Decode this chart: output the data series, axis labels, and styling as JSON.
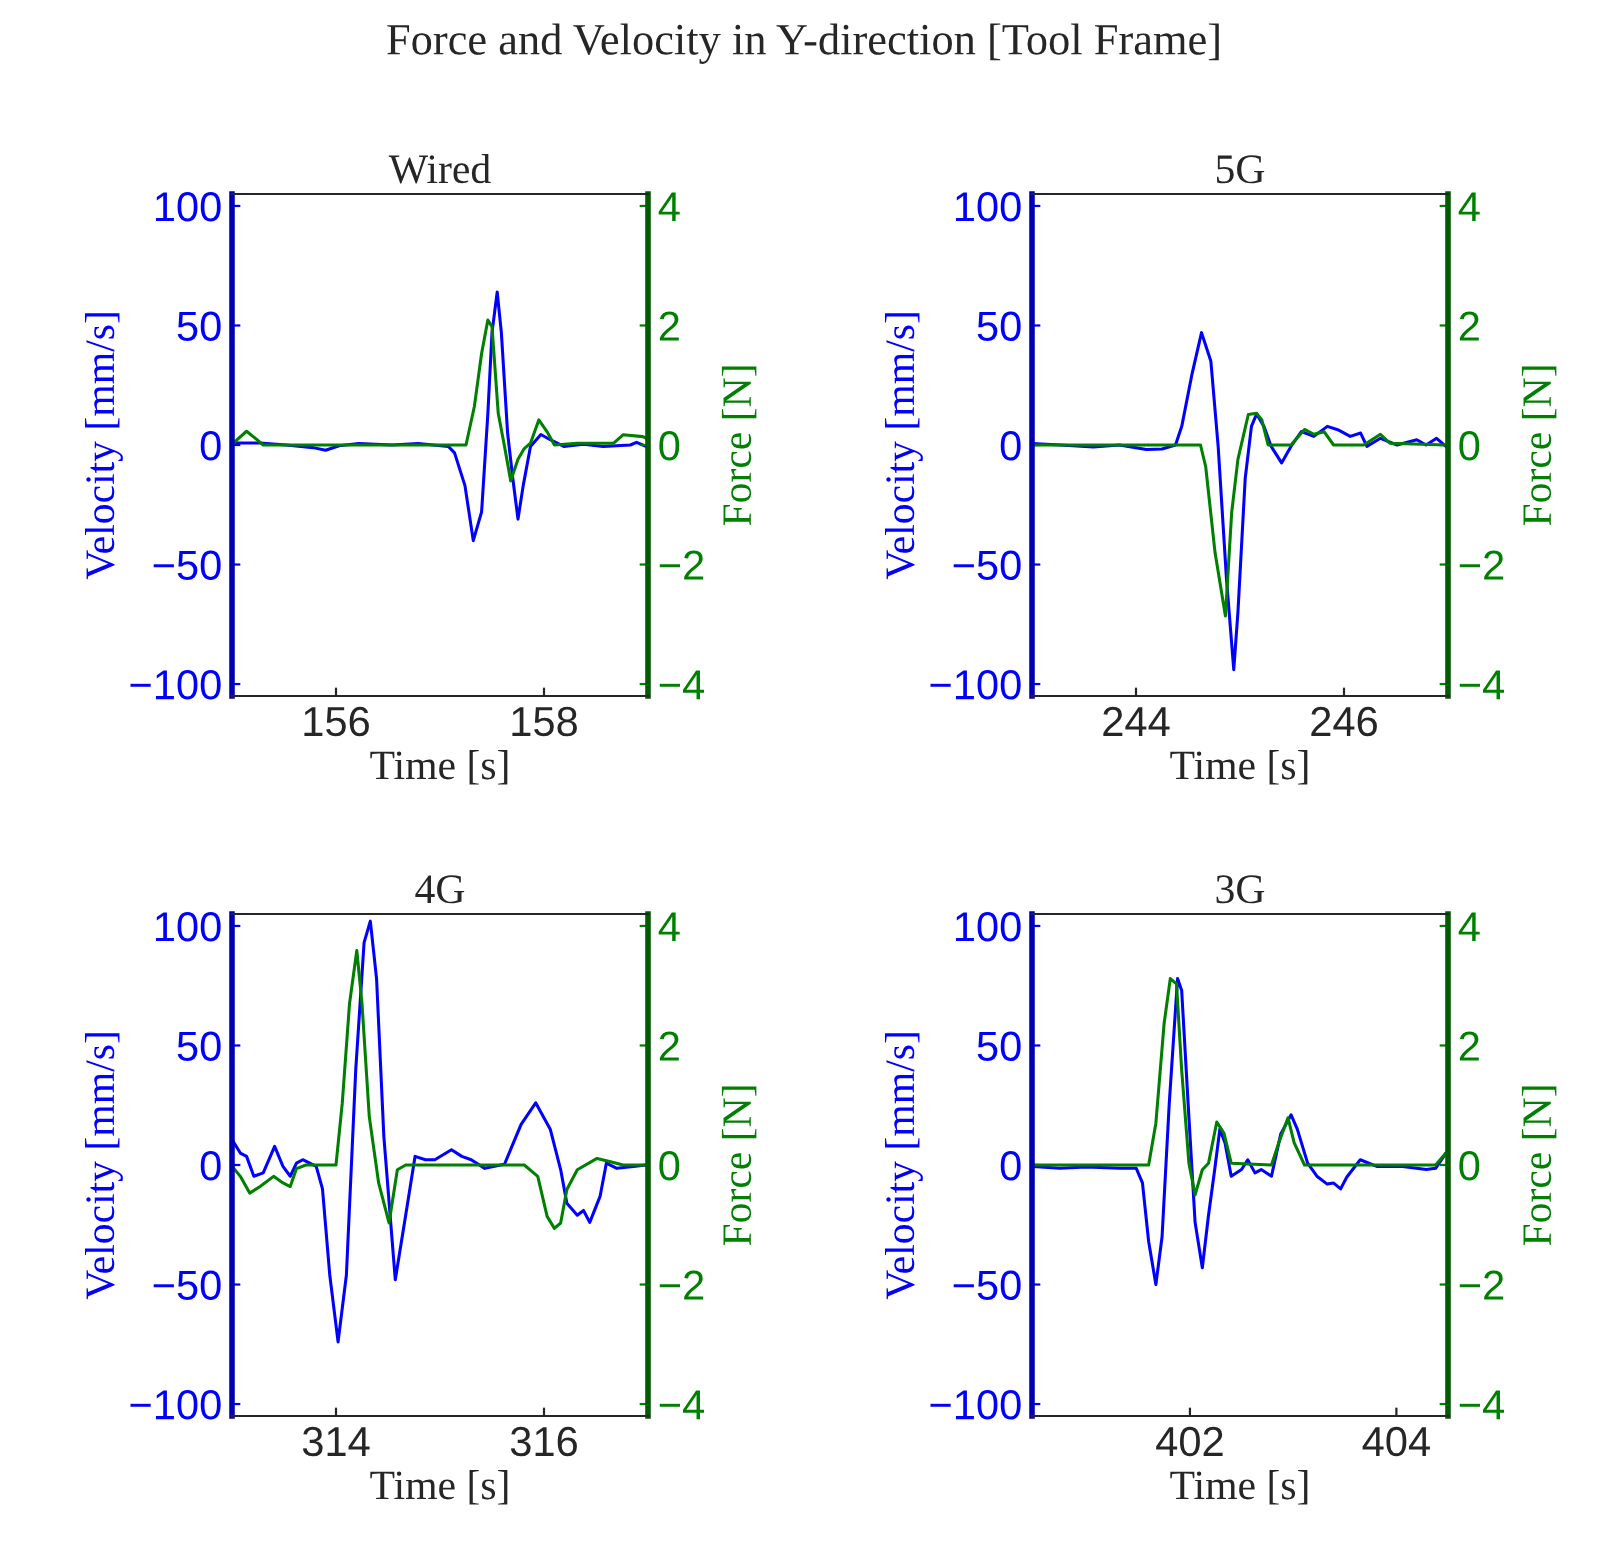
{
  "chart_data": [
    {
      "type": "line",
      "title": "Wired",
      "xlabel": "Time [s]",
      "ylabel": "Velocity [mm/s]",
      "y2label": "Force [N]",
      "annotations": [
        "Force and Velocity in Y-direction [Tool Frame]"
      ],
      "xlim": [
        155,
        159
      ],
      "xticks": [
        156,
        158
      ],
      "ylim": [
        -105,
        105
      ],
      "yticks": [
        -100,
        -50,
        0,
        50,
        100
      ],
      "y2lim": [
        -4.2,
        4.2
      ],
      "y2ticks": [
        -4,
        -2,
        0,
        2,
        4
      ],
      "grid": false,
      "series": [
        {
          "color": "#0000ff",
          "x": [
            155.0,
            155.27,
            155.52,
            155.78,
            155.9,
            156.03,
            156.22,
            156.54,
            156.79,
            157.08,
            157.14,
            157.24,
            157.32,
            157.4,
            157.46,
            157.5,
            157.55,
            157.59,
            157.65,
            157.7,
            157.75,
            157.8,
            157.87,
            157.97,
            158.06,
            158.19,
            158.38,
            158.57,
            158.83,
            158.89,
            158.98
          ],
          "values": [
            0.8,
            0.8,
            0,
            -1.1,
            -2.2,
            -0.3,
            0.6,
            0,
            0.6,
            -0.6,
            -3.3,
            -17,
            -40,
            -28,
            13,
            47,
            64,
            47,
            5,
            -14,
            -31,
            -17,
            -0.6,
            4.4,
            2.2,
            -0.6,
            0.3,
            -0.6,
            0,
            1.1,
            -0.6
          ]
        },
        {
          "color": "#008000",
          "axis": "y2",
          "x": [
            155.0,
            155.05,
            155.14,
            155.24,
            155.3,
            156.16,
            157.25,
            157.33,
            157.4,
            157.46,
            157.5,
            157.56,
            157.62,
            157.68,
            157.75,
            157.81,
            157.87,
            157.95,
            158.03,
            158.1,
            158.32,
            158.67,
            158.76,
            158.95,
            159.0
          ],
          "values": [
            0,
            0.09,
            0.23,
            0.09,
            0,
            0,
            0,
            0.64,
            1.53,
            2.09,
            1.98,
            0.53,
            -0.02,
            -0.6,
            -0.24,
            -0.06,
            0.03,
            0.42,
            0.22,
            0,
            0.03,
            0.03,
            0.17,
            0.14,
            0.1
          ]
        }
      ]
    },
    {
      "type": "line",
      "title": "5G",
      "xlabel": "Time [s]",
      "ylabel": "Velocity [mm/s]",
      "y2label": "Force [N]",
      "xlim": [
        243,
        247
      ],
      "xticks": [
        244,
        246
      ],
      "ylim": [
        -105,
        105
      ],
      "yticks": [
        -100,
        -50,
        0,
        50,
        100
      ],
      "y2lim": [
        -4.2,
        4.2
      ],
      "y2ticks": [
        -4,
        -2,
        0,
        2,
        4
      ],
      "grid": false,
      "series": [
        {
          "color": "#0000ff",
          "x": [
            243.0,
            243.27,
            243.59,
            243.84,
            244.1,
            244.25,
            244.38,
            244.44,
            244.54,
            244.63,
            244.72,
            244.79,
            244.87,
            244.94,
            244.98,
            245.05,
            245.11,
            245.16,
            245.23,
            245.3,
            245.4,
            245.49,
            245.59,
            245.71,
            245.84,
            245.94,
            246.06,
            246.16,
            246.22,
            246.35,
            246.51,
            246.7,
            246.79,
            246.89,
            246.98
          ],
          "values": [
            0.6,
            0,
            -0.8,
            0,
            -1.9,
            -1.7,
            0,
            7.8,
            30,
            47,
            35,
            -0.6,
            -56,
            -94,
            -70,
            -14,
            7.8,
            13,
            7.8,
            -0.6,
            -7.5,
            -0.6,
            5.6,
            3.6,
            7.8,
            6.4,
            3.6,
            5,
            -0.6,
            2.8,
            0,
            2.2,
            0,
            2.8,
            -0.6
          ]
        },
        {
          "color": "#008000",
          "axis": "y2",
          "x": [
            243.0,
            244.62,
            244.67,
            244.76,
            244.86,
            244.92,
            244.98,
            245.08,
            245.16,
            245.21,
            245.27,
            245.49,
            245.62,
            245.71,
            245.81,
            245.9,
            246.19,
            246.35,
            246.44,
            246.98
          ],
          "values": [
            0,
            0,
            -0.36,
            -1.8,
            -2.86,
            -1.13,
            -0.24,
            0.51,
            0.53,
            0.42,
            0,
            0,
            0.26,
            0.18,
            0.22,
            0,
            0,
            0.18,
            0.03,
            0
          ]
        }
      ]
    },
    {
      "type": "line",
      "title": "4G",
      "xlabel": "Time [s]",
      "ylabel": "Velocity [mm/s]",
      "y2label": "Force [N]",
      "xlim": [
        313,
        317
      ],
      "xticks": [
        314,
        316
      ],
      "ylim": [
        -105,
        105
      ],
      "yticks": [
        -100,
        -50,
        0,
        50,
        100
      ],
      "y2lim": [
        -4.2,
        4.2
      ],
      "y2ticks": [
        -4,
        -2,
        0,
        2,
        4
      ],
      "grid": false,
      "series": [
        {
          "color": "#0000ff",
          "x": [
            313.0,
            313.08,
            313.14,
            313.21,
            313.3,
            313.41,
            313.49,
            313.56,
            313.62,
            313.68,
            313.81,
            313.87,
            313.94,
            314.02,
            314.1,
            314.19,
            314.27,
            314.33,
            314.39,
            314.46,
            314.57,
            314.67,
            314.76,
            314.86,
            314.95,
            315.11,
            315.21,
            315.3,
            315.43,
            315.62,
            315.78,
            315.92,
            316.06,
            316.16,
            316.22,
            316.32,
            316.38,
            316.44,
            316.54,
            316.6,
            316.7,
            316.86,
            316.98
          ],
          "values": [
            10.6,
            5,
            3.6,
            -4.7,
            -3.3,
            7.8,
            -0.6,
            -4.7,
            0.8,
            2.2,
            -0.6,
            -10,
            -46,
            -74,
            -46,
            40,
            93,
            102,
            78,
            12,
            -48,
            -21,
            3.6,
            2.2,
            2.2,
            6.4,
            3.6,
            2.2,
            -1.4,
            0.3,
            17,
            26,
            15,
            -1.9,
            -16,
            -21,
            -19,
            -24,
            -13,
            0.8,
            -1.4,
            -0.6,
            0
          ]
        },
        {
          "color": "#008000",
          "axis": "y2",
          "x": [
            313.0,
            313.08,
            313.17,
            313.27,
            313.4,
            313.49,
            313.56,
            313.62,
            313.71,
            314.0,
            314.06,
            314.13,
            314.2,
            314.25,
            314.32,
            314.41,
            314.51,
            314.59,
            314.67,
            315.81,
            315.94,
            316.03,
            316.1,
            316.16,
            316.22,
            316.32,
            316.51,
            316.63,
            316.76,
            316.98
          ],
          "values": [
            -0.02,
            -0.19,
            -0.47,
            -0.36,
            -0.19,
            -0.3,
            -0.36,
            -0.06,
            0,
            0,
            1.03,
            2.7,
            3.59,
            2.7,
            0.81,
            -0.3,
            -0.97,
            -0.08,
            0,
            0,
            -0.19,
            -0.86,
            -1.06,
            -0.97,
            -0.41,
            -0.08,
            0.11,
            0.06,
            0,
            0
          ]
        }
      ]
    },
    {
      "type": "line",
      "title": "3G",
      "xlabel": "Time [s]",
      "ylabel": "Velocity [mm/s]",
      "y2label": "Force [N]",
      "xlim": [
        400.47,
        404.5
      ],
      "xticks": [
        402,
        404
      ],
      "ylim": [
        -105,
        105
      ],
      "yticks": [
        -100,
        -50,
        0,
        50,
        100
      ],
      "y2lim": [
        -4.2,
        4.2
      ],
      "y2ticks": [
        -4,
        -2,
        0,
        2,
        4
      ],
      "grid": false,
      "series": [
        {
          "color": "#0000ff",
          "x": [
            400.48,
            400.74,
            401.0,
            401.32,
            401.48,
            401.54,
            401.6,
            401.67,
            401.73,
            401.8,
            401.88,
            401.92,
            401.99,
            402.05,
            402.12,
            402.18,
            402.24,
            402.29,
            402.34,
            402.4,
            402.5,
            402.56,
            402.63,
            402.69,
            402.79,
            402.88,
            402.98,
            403.04,
            403.14,
            403.23,
            403.33,
            403.39,
            403.46,
            403.52,
            403.65,
            403.81,
            404.06,
            404.29,
            404.38,
            404.48
          ],
          "values": [
            -0.6,
            -1.4,
            -0.8,
            -1.4,
            -1.4,
            -7.5,
            -32,
            -50,
            -30,
            26,
            78,
            73,
            20,
            -24,
            -43,
            -21,
            -1.9,
            15,
            9.2,
            -4.7,
            -1.9,
            2.2,
            -3.3,
            -1.9,
            -4.7,
            13,
            21,
            15,
            0.8,
            -4.7,
            -8,
            -7.5,
            -10,
            -5,
            2.2,
            -0.6,
            -0.6,
            -1.9,
            -1.4,
            5
          ]
        },
        {
          "color": "#008000",
          "axis": "y2",
          "x": [
            400.48,
            401.6,
            401.67,
            401.75,
            401.81,
            401.87,
            401.92,
            401.99,
            402.05,
            402.12,
            402.18,
            402.26,
            402.33,
            402.4,
            402.79,
            402.86,
            402.95,
            403.01,
            403.11,
            404.38,
            404.48
          ],
          "values": [
            0,
            0,
            0.7,
            2.37,
            3.12,
            3.03,
            1.59,
            0.03,
            -0.5,
            -0.08,
            0.03,
            0.72,
            0.53,
            0.03,
            0,
            0.37,
            0.79,
            0.37,
            0,
            0,
            0.2
          ]
        }
      ]
    }
  ]
}
